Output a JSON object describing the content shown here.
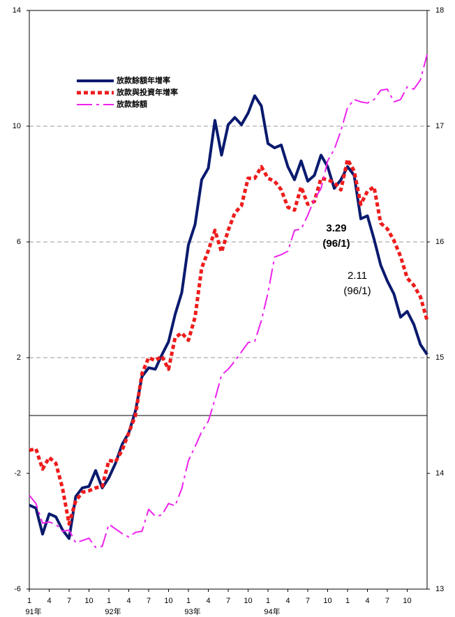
{
  "chart_data": {
    "type": "line",
    "categories": [
      "1",
      null,
      null,
      "4",
      null,
      null,
      "7",
      null,
      null,
      "10",
      null,
      null,
      "1",
      null,
      null,
      "4",
      null,
      null,
      "7",
      null,
      null,
      "10",
      null,
      null,
      "1",
      null,
      null,
      "4",
      null,
      null,
      "7",
      null,
      null,
      "10",
      null,
      null,
      "1",
      null,
      null,
      "4",
      null,
      null,
      "7",
      null,
      null,
      "10",
      null,
      null,
      "1",
      null,
      null,
      "4",
      null,
      null,
      "7",
      null,
      null,
      "10",
      null,
      null,
      null
    ],
    "year_labels": [
      "91年",
      "92年",
      "93年",
      "94年"
    ],
    "ylim": [
      -6,
      14
    ],
    "yticks": [
      -6,
      -2,
      2,
      6,
      10,
      14
    ],
    "y2lim": [
      13,
      18
    ],
    "y2ticks": [
      13,
      14,
      15,
      16,
      17,
      18
    ],
    "grid": true,
    "series": [
      {
        "name": "放款餘額年增率",
        "color": "#0a1a6e",
        "values": [
          -3.1,
          -3.2,
          -4.1,
          -3.4,
          -3.5,
          -3.95,
          -4.25,
          -2.8,
          -2.5,
          -2.45,
          -1.9,
          -2.5,
          -2.15,
          -1.65,
          -1.0,
          -0.6,
          0.15,
          1.35,
          1.65,
          1.6,
          2.1,
          2.55,
          3.5,
          4.25,
          5.9,
          6.6,
          8.15,
          8.55,
          10.2,
          9.0,
          10.05,
          10.3,
          10.05,
          10.45,
          11.05,
          10.7,
          9.4,
          9.25,
          9.35,
          8.6,
          8.15,
          8.8,
          8.1,
          8.3,
          9.0,
          8.6,
          7.85,
          8.15,
          8.6,
          8.3,
          6.8,
          6.9,
          6.1,
          5.2,
          4.65,
          4.2,
          3.4,
          3.6,
          3.15,
          2.45,
          2.11
        ]
      },
      {
        "name": "放款與投資年增率",
        "color": "#ee1c1c",
        "values": [
          -1.2,
          -1.15,
          -1.85,
          -1.45,
          -1.65,
          -2.5,
          -3.75,
          -2.95,
          -2.65,
          -2.6,
          -2.5,
          -2.45,
          -1.55,
          -1.6,
          -1.2,
          -0.6,
          0.0,
          1.45,
          2.0,
          1.9,
          2.05,
          1.6,
          2.7,
          2.85,
          2.6,
          3.4,
          5.1,
          5.7,
          6.4,
          5.65,
          6.4,
          7.0,
          7.25,
          8.2,
          8.2,
          8.6,
          8.2,
          8.1,
          7.8,
          7.2,
          7.1,
          7.9,
          7.3,
          7.4,
          8.2,
          8.15,
          8.05,
          7.8,
          8.85,
          8.45,
          7.3,
          7.75,
          7.9,
          6.65,
          6.45,
          6.05,
          5.5,
          4.75,
          4.5,
          4.1,
          3.29
        ]
      },
      {
        "name": "放款餘額",
        "color": "#ee22ee",
        "axis": "y2",
        "values": [
          13.81,
          13.74,
          13.57,
          13.58,
          13.56,
          13.5,
          13.51,
          13.4,
          13.42,
          13.44,
          13.36,
          13.37,
          13.56,
          13.52,
          13.48,
          13.45,
          13.49,
          13.5,
          13.69,
          13.63,
          13.64,
          13.74,
          13.72,
          13.87,
          14.11,
          14.23,
          14.36,
          14.45,
          14.64,
          14.85,
          14.9,
          14.97,
          15.05,
          15.13,
          15.14,
          15.32,
          15.56,
          15.87,
          15.89,
          15.92,
          16.1,
          16.11,
          16.23,
          16.37,
          16.46,
          16.7,
          16.8,
          16.96,
          17.16,
          17.23,
          17.21,
          17.2,
          17.23,
          17.31,
          17.32,
          17.21,
          17.23,
          17.34,
          17.32,
          17.4,
          17.62
        ]
      }
    ],
    "annotations": [
      {
        "lines": [
          "3.29",
          "(96/1)"
        ],
        "bold": true
      },
      {
        "lines": [
          "2.11",
          "(96/1)"
        ],
        "bold": false
      }
    ]
  }
}
